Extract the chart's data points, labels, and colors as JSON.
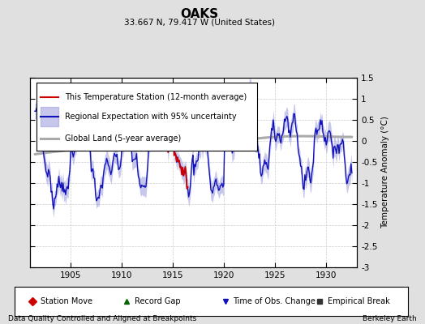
{
  "title": "OAKS",
  "subtitle": "33.667 N, 79.417 W (United States)",
  "ylabel": "Temperature Anomaly (°C)",
  "xlim": [
    1901.0,
    1933.0
  ],
  "ylim": [
    -3.0,
    1.5
  ],
  "yticks": [
    1.5,
    1.0,
    0.5,
    0.0,
    -0.5,
    -1.0,
    -1.5,
    -2.0,
    -2.5,
    -3.0
  ],
  "xticks": [
    1905,
    1910,
    1915,
    1920,
    1925,
    1930
  ],
  "bg_color": "#e0e0e0",
  "plot_bg_color": "#ffffff",
  "regional_line_color": "#1111bb",
  "regional_fill_color": "#9999dd",
  "station_line_color": "#cc0000",
  "global_line_color": "#aaaaaa",
  "footer_left": "Data Quality Controlled and Aligned at Breakpoints",
  "footer_right": "Berkeley Earth"
}
